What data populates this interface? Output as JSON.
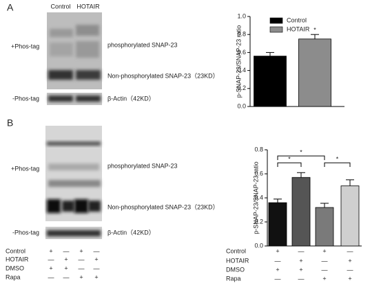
{
  "panels": [
    {
      "label": "A",
      "lanes": [
        "Control",
        "HOTAIR"
      ],
      "phos_tag_plus": "+Phos-tag",
      "phos_tag_minus": "-Phos-tag",
      "band_phos": "phosphorylated SNAP-23",
      "band_nonphos": "Non-phosphorylated SNAP-23（23KD）",
      "band_actin": "β-Actin（42KD）"
    },
    {
      "label": "B",
      "phos_tag_plus": "+Phos-tag",
      "phos_tag_minus": "-Phos-tag",
      "band_phos": "phosphorylated SNAP-23",
      "band_nonphos": "Non-phosphorylated SNAP-23（23KD）",
      "band_actin": "β-Actin（42KD）",
      "conditions": [
        {
          "name": "Control",
          "signs": [
            "+",
            "—",
            "+",
            "—"
          ]
        },
        {
          "name": "HOTAIR",
          "signs": [
            "—",
            "+",
            "—",
            "+"
          ]
        },
        {
          "name": "DMSO",
          "signs": [
            "+",
            "+",
            "—",
            "—"
          ]
        },
        {
          "name": "Rapa",
          "signs": [
            "—",
            "—",
            "+",
            "+"
          ]
        }
      ]
    }
  ],
  "chart_data": [
    {
      "type": "bar",
      "y_label": "p-SNAP-23/SNAP-23 ratio",
      "ylim": [
        0,
        1.0
      ],
      "yticks": [
        {
          "value": 0,
          "label": "0.0"
        },
        0.2,
        0.4,
        0.6,
        0.8,
        {
          "value": 1.0,
          "label": "1.0"
        }
      ],
      "series": [
        {
          "name": "Control",
          "color": "#000000",
          "values": [
            0.56
          ],
          "errors": [
            0.04
          ]
        },
        {
          "name": "HOTAIR",
          "color": "#8c8c8c",
          "values": [
            0.75
          ],
          "errors": [
            0.05
          ]
        }
      ],
      "significance": [
        {
          "label": "*",
          "groups": [
            1
          ]
        }
      ]
    },
    {
      "type": "bar",
      "y_label": "p-SNAP-23/SNAP-23 ratio",
      "ylim": [
        0,
        0.8
      ],
      "yticks": [
        {
          "value": 0,
          "label": "0.0"
        },
        0.2,
        0.4,
        0.6,
        0.8
      ],
      "values": [
        0.36,
        0.57,
        0.32,
        0.5
      ],
      "errors": [
        0.03,
        0.04,
        0.035,
        0.05
      ],
      "colors": [
        "#111111",
        "#555555",
        "#7a7a7a",
        "#cfcfcf"
      ],
      "conditions": [
        {
          "name": "Control",
          "signs": [
            "+",
            "—",
            "+",
            "—"
          ]
        },
        {
          "name": "HOTAIR",
          "signs": [
            "—",
            "+",
            "—",
            "+"
          ]
        },
        {
          "name": "DMSO",
          "signs": [
            "+",
            "+",
            "—",
            "—"
          ]
        },
        {
          "name": "Rapa",
          "signs": [
            "—",
            "—",
            "+",
            "+"
          ]
        }
      ],
      "significance": [
        {
          "label": "*",
          "groups": [
            0,
            1
          ]
        },
        {
          "label": "*",
          "groups": [
            0,
            2
          ]
        },
        {
          "label": "*",
          "groups": [
            2,
            3
          ]
        }
      ]
    }
  ]
}
